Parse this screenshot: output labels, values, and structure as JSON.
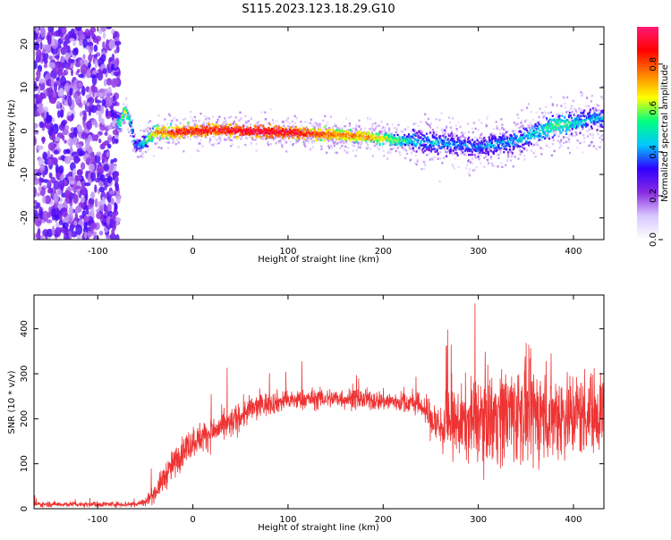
{
  "figure": {
    "title": "S115.2023.123.18.29.G10"
  },
  "chart_data": [
    {
      "type": "heatmap",
      "xlabel": "Height of straight line (km)",
      "ylabel": "Frequency (Hz)",
      "xlim": [
        -167,
        432
      ],
      "ylim": [
        -25,
        24
      ],
      "xticks": [
        -100,
        0,
        100,
        200,
        300,
        400
      ],
      "yticks": [
        -20,
        -10,
        0,
        10,
        20
      ],
      "colorbar": {
        "label": "Normalized spectral amplitude",
        "range": [
          0,
          0.97
        ],
        "ticks": [
          "0.0",
          "0.2",
          "0.4",
          "0.6",
          "0.8"
        ],
        "colormap": [
          "#ffffff",
          "#d9c7ff",
          "#8a2be2",
          "#3000ff",
          "#00c8ff",
          "#00ff80",
          "#ffff00",
          "#ff8000",
          "#ff0000",
          "#ff1a75"
        ]
      },
      "noise_region_x": [
        -167,
        -78
      ],
      "ridge": {
        "x": [
          -78,
          -72,
          -66,
          -62,
          -58,
          -50,
          -40,
          -20,
          0,
          20,
          50,
          80,
          100,
          130,
          160,
          180,
          200,
          220,
          240,
          260,
          280,
          300,
          320,
          340,
          360,
          380,
          400,
          420,
          432
        ],
        "frequency": [
          2,
          5,
          2,
          -3,
          -3,
          -2,
          0,
          0,
          0.2,
          0.5,
          0.3,
          0,
          0,
          -0.5,
          -0.8,
          -1,
          -1.5,
          -2,
          -2,
          -2.5,
          -3,
          -3.5,
          -2.5,
          -2,
          0,
          1.5,
          2,
          3,
          3
        ],
        "peak_amplitude": [
          0.55,
          0.7,
          0.5,
          0.4,
          0.45,
          0.55,
          0.75,
          0.9,
          0.9,
          0.92,
          0.95,
          0.97,
          0.95,
          0.85,
          0.8,
          0.78,
          0.7,
          0.55,
          0.45,
          0.45,
          0.4,
          0.4,
          0.45,
          0.45,
          0.5,
          0.6,
          0.5,
          0.45,
          0.45
        ]
      }
    },
    {
      "type": "line",
      "xlabel": "Height of straight line (km)",
      "ylabel": "SNR (10 * v/v)",
      "xlim": [
        -167,
        432
      ],
      "ylim": [
        0,
        475
      ],
      "xticks": [
        -100,
        0,
        100,
        200,
        300,
        400
      ],
      "yticks": [
        0,
        100,
        200,
        300,
        400
      ],
      "color": "#ee3333",
      "series": [
        {
          "x": [
            -167,
            -120,
            -80,
            -60,
            -50,
            -40,
            -30,
            -20,
            -10,
            0,
            20,
            40,
            60,
            80,
            100,
            130,
            160,
            200,
            230,
            240,
            250,
            260,
            280,
            300,
            320,
            340,
            360,
            380,
            400,
            420,
            432
          ],
          "mean": [
            10,
            10,
            10,
            10,
            15,
            35,
            70,
            100,
            130,
            150,
            170,
            190,
            220,
            235,
            240,
            245,
            245,
            240,
            235,
            230,
            200,
            180,
            190,
            200,
            210,
            215,
            210,
            210,
            210,
            215,
            220
          ],
          "spread": [
            8,
            8,
            8,
            10,
            15,
            25,
            40,
            45,
            45,
            45,
            45,
            45,
            40,
            35,
            30,
            30,
            30,
            30,
            30,
            35,
            60,
            80,
            100,
            130,
            140,
            150,
            150,
            140,
            130,
            120,
            120
          ]
        }
      ]
    }
  ]
}
